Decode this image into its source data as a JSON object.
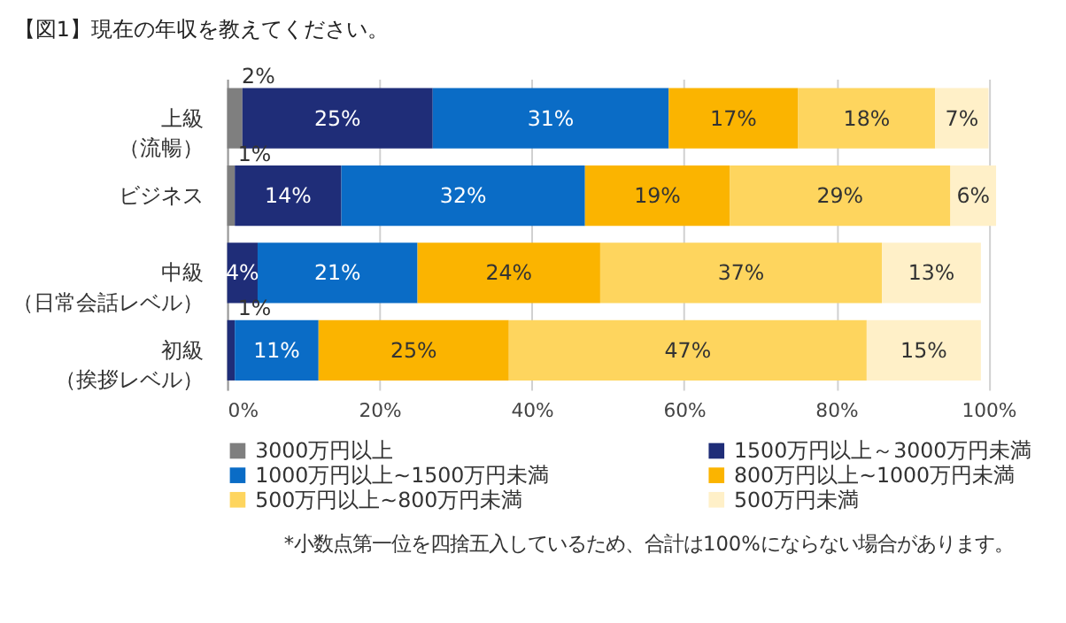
{
  "chart_data": {
    "type": "bar",
    "orientation": "horizontal",
    "stacked": true,
    "title": "【図1】現在の年収を教えてください。",
    "categories": [
      "上級（流暢）",
      "ビジネス",
      "中級（日常会話レベル）",
      "初級（挨拶レベル）"
    ],
    "series": [
      {
        "name": "3000万円以上",
        "color": "#7f7f7f",
        "values": [
          2,
          1,
          0,
          0
        ],
        "value_labels": [
          "2%",
          "1%",
          null,
          null
        ]
      },
      {
        "name": "1500万円以上～3000万円未満",
        "color": "#1f2d78",
        "values": [
          25,
          14,
          4,
          1
        ],
        "value_labels": [
          "25%",
          "14%",
          "4%",
          "1%"
        ]
      },
      {
        "name": "1000万円以上~1500万円未満",
        "color": "#0a6cc6",
        "values": [
          31,
          32,
          21,
          11
        ],
        "value_labels": [
          "31%",
          "32%",
          "21%",
          "11%"
        ]
      },
      {
        "name": "800万円以上~1000万円未満",
        "color": "#fbb400",
        "values": [
          17,
          19,
          24,
          25
        ],
        "value_labels": [
          "17%",
          "19%",
          "24%",
          "25%"
        ]
      },
      {
        "name": "500万円以上~800万円未満",
        "color": "#fed55e",
        "values": [
          18,
          29,
          37,
          47
        ],
        "value_labels": [
          "18%",
          "29%",
          "37%",
          "47%"
        ]
      },
      {
        "name": "500万円未満",
        "color": "#fff0c8",
        "values": [
          7,
          6,
          13,
          15
        ],
        "value_labels": [
          "7%",
          "6%",
          "13%",
          "15%"
        ]
      }
    ],
    "xlim": [
      0,
      101
    ],
    "xticks": [
      {
        "value": 0,
        "label": "0%"
      },
      {
        "value": 20,
        "label": "20%"
      },
      {
        "value": 40,
        "label": "40%"
      },
      {
        "value": 60,
        "label": "60%"
      },
      {
        "value": 80,
        "label": "80%"
      },
      {
        "value": 100,
        "label": "100%"
      }
    ],
    "grid": "x",
    "legend": "bottom",
    "annotations": [
      "*小数点第一位を四捨五入しているため、合計は100%にならない場合があります。"
    ]
  }
}
